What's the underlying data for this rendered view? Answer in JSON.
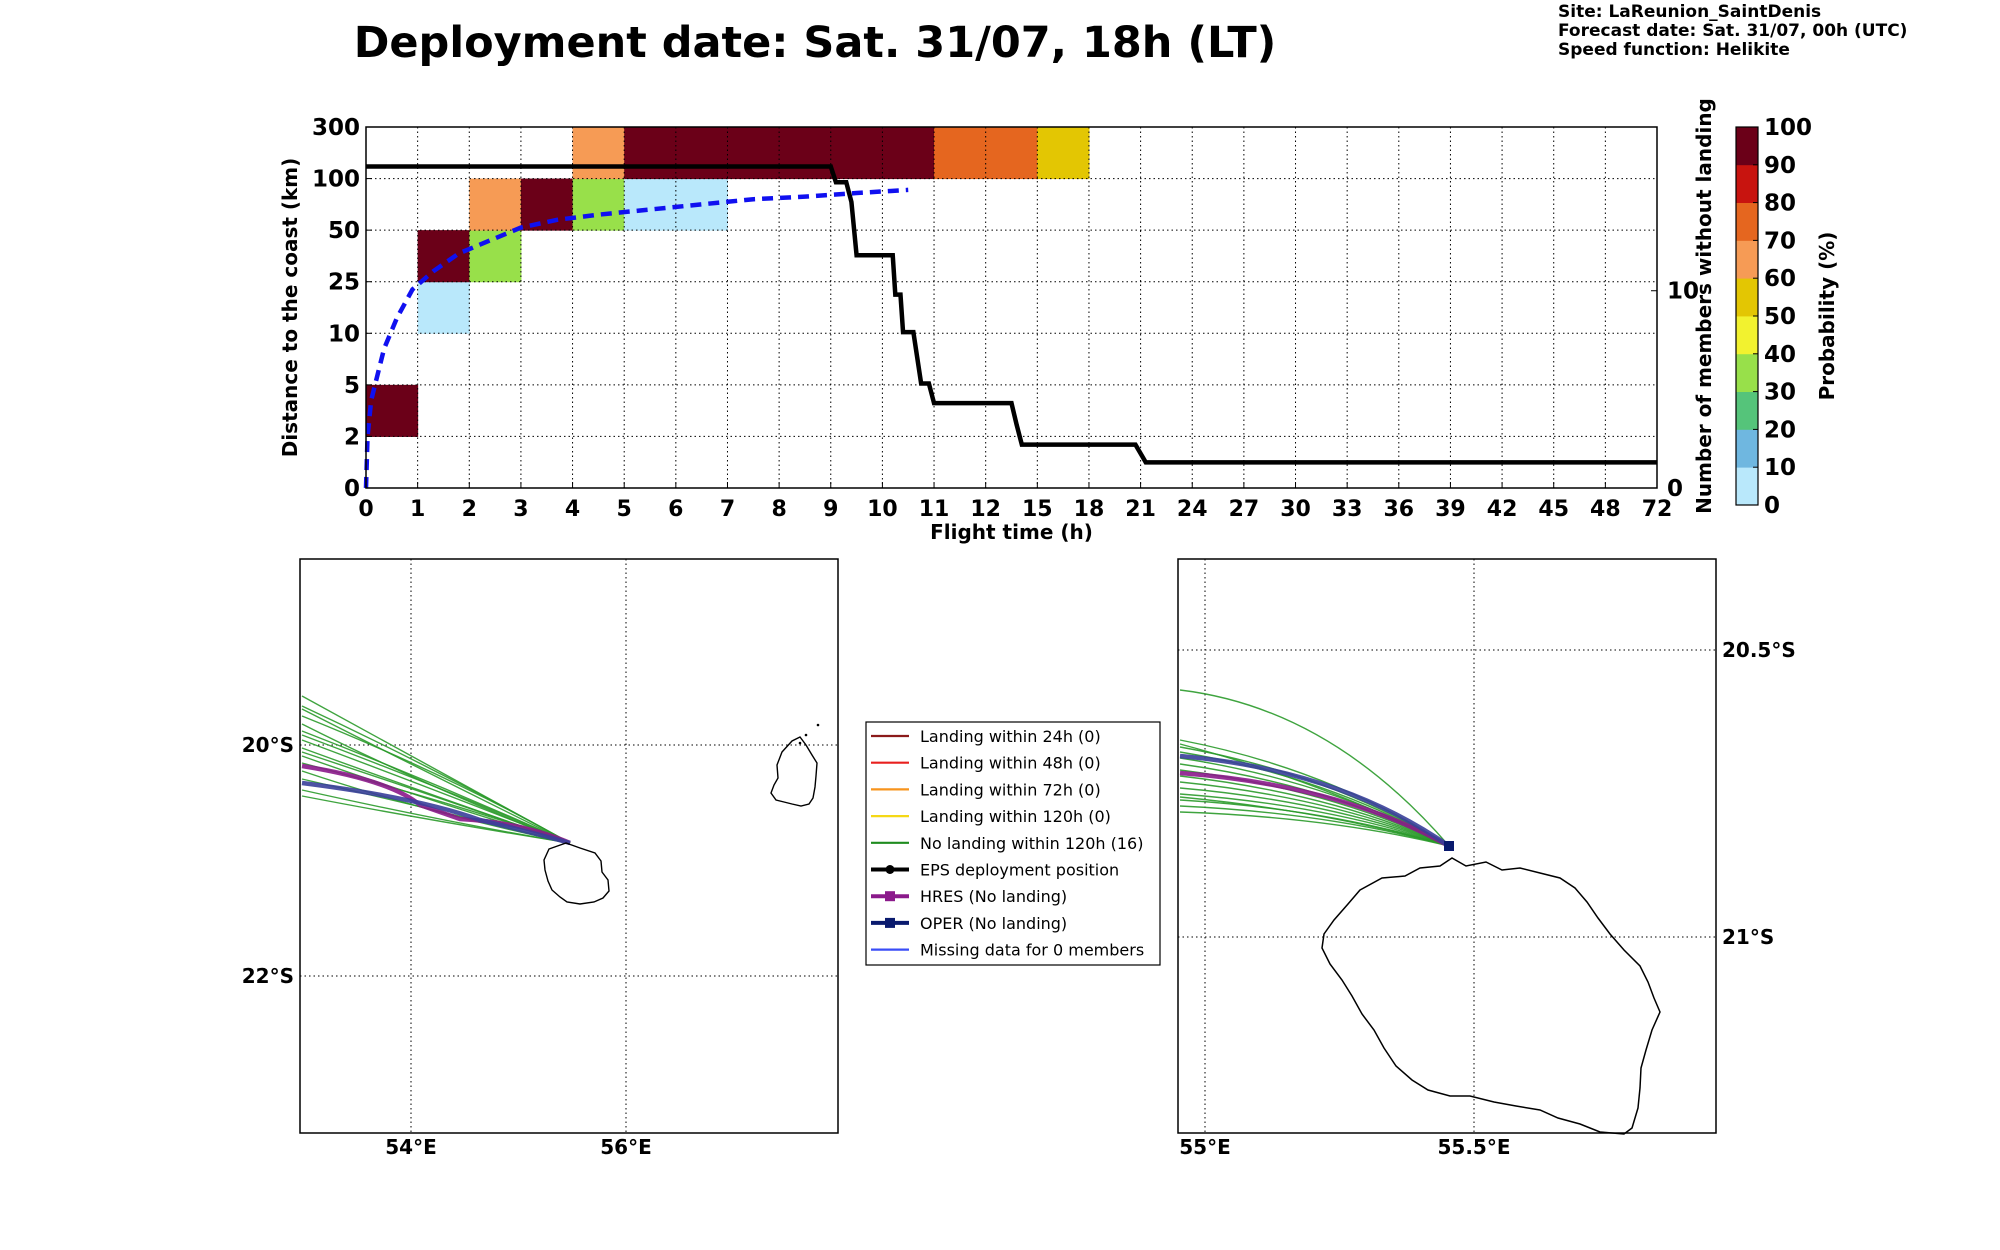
{
  "header": {
    "title": "Deployment date: Sat. 31/07, 18h (LT)",
    "site": "Site: LaReunion_SaintDenis",
    "forecast": "Forecast date: Sat. 31/07, 00h (UTC)",
    "speed": "Speed function: Helikite"
  },
  "chart_data": [
    {
      "type": "heatmap",
      "xlabel": "Flight time (h)",
      "ylabel": "Distance to the coast (km)",
      "y2label": "Number of members without landing",
      "colorbar_label": "Probability (%)",
      "x_tick_labels": [
        "0",
        "1",
        "2",
        "3",
        "4",
        "5",
        "6",
        "7",
        "8",
        "9",
        "10",
        "11",
        "12",
        "15",
        "18",
        "21",
        "24",
        "27",
        "30",
        "33",
        "36",
        "39",
        "42",
        "45",
        "48",
        "72"
      ],
      "y_tick_labels": [
        "0",
        "2",
        "5",
        "10",
        "25",
        "50",
        "100",
        "300"
      ],
      "y2_tick_labels": [
        "0",
        "10"
      ],
      "y2_range": [
        0,
        18.3
      ],
      "colorbar_ticks": [
        "0",
        "10",
        "20",
        "30",
        "40",
        "50",
        "60",
        "70",
        "80",
        "90",
        "100"
      ],
      "colorbar_colors": [
        "#b9e8fb",
        "#6fb7e0",
        "#55c47a",
        "#98e04a",
        "#f2f22f",
        "#e3c603",
        "#f69b55",
        "#e5661f",
        "#c8140f",
        "#6b0018"
      ],
      "cells": [
        {
          "x": 0,
          "y": 1,
          "p": 100
        },
        {
          "x": 1,
          "y": 3,
          "p": 5
        },
        {
          "x": 1,
          "y": 4,
          "p": 100
        },
        {
          "x": 2,
          "y": 4,
          "p": 35
        },
        {
          "x": 2,
          "y": 5,
          "p": 65
        },
        {
          "x": 3,
          "y": 5,
          "p": 100
        },
        {
          "x": 4,
          "y": 5,
          "p": 35
        },
        {
          "x": 4,
          "y": 6,
          "p": 65
        },
        {
          "x": 5,
          "y": 5,
          "p": 5
        },
        {
          "x": 6,
          "y": 5,
          "p": 5
        },
        {
          "x": 5,
          "y": 6,
          "p": 100
        },
        {
          "x": 6,
          "y": 6,
          "p": 100
        },
        {
          "x": 7,
          "y": 6,
          "p": 100
        },
        {
          "x": 8,
          "y": 6,
          "p": 100
        },
        {
          "x": 9,
          "y": 6,
          "p": 100
        },
        {
          "x": 10,
          "y": 6,
          "p": 100
        },
        {
          "x": 11,
          "y": 6,
          "p": 75
        },
        {
          "x": 12,
          "y": 6,
          "p": 75
        },
        {
          "x": 13,
          "y": 6,
          "p": 55
        }
      ],
      "members_without_landing": [
        [
          0,
          16.3
        ],
        [
          9,
          16.3
        ],
        [
          9.1,
          15.5
        ],
        [
          9.3,
          15.5
        ],
        [
          9.4,
          14.5
        ],
        [
          9.5,
          11.8
        ],
        [
          10.2,
          11.8
        ],
        [
          10.25,
          9.8
        ],
        [
          10.35,
          9.8
        ],
        [
          10.4,
          7.9
        ],
        [
          10.6,
          7.9
        ],
        [
          10.75,
          5.3
        ],
        [
          10.9,
          5.3
        ],
        [
          11.0,
          4.3
        ],
        [
          12.5,
          4.3
        ],
        [
          12.6,
          3.2
        ],
        [
          12.7,
          2.2
        ],
        [
          14.9,
          2.2
        ],
        [
          15.1,
          1.3
        ],
        [
          25,
          1.3
        ]
      ],
      "mean_distance_curve": [
        [
          0,
          0.0
        ],
        [
          0.03,
          1.0
        ],
        [
          0.1,
          1.7
        ],
        [
          0.2,
          2.1
        ],
        [
          0.35,
          2.7
        ],
        [
          0.6,
          3.3
        ],
        [
          0.9,
          3.85
        ],
        [
          1.3,
          4.2
        ],
        [
          1.8,
          4.55
        ],
        [
          2.4,
          4.8
        ],
        [
          3.0,
          5.05
        ],
        [
          3.7,
          5.2
        ],
        [
          4.5,
          5.3
        ],
        [
          5.5,
          5.4
        ],
        [
          6.5,
          5.5
        ],
        [
          7.5,
          5.6
        ],
        [
          8.5,
          5.65
        ],
        [
          9.5,
          5.72
        ],
        [
          10.5,
          5.78
        ]
      ]
    },
    {
      "type": "map",
      "lat_labels": [
        "20°S",
        "22°S"
      ],
      "lon_labels": [
        "54°E",
        "56°E"
      ],
      "legend": [
        {
          "label": "Landing within 24h (0)",
          "color": "#8b1a1a",
          "marker": "none"
        },
        {
          "label": "Landing within 48h (0)",
          "color": "#e8201f",
          "marker": "none"
        },
        {
          "label": "Landing within 72h (0)",
          "color": "#f7941d",
          "marker": "none"
        },
        {
          "label": "Landing within 120h (0)",
          "color": "#f5d816",
          "marker": "none"
        },
        {
          "label": "No landing within 120h (16)",
          "color": "#1f8c1f",
          "marker": "none"
        },
        {
          "label": "EPS deployment position",
          "color": "#000000",
          "marker": "circle"
        },
        {
          "label": "HRES (No landing)",
          "color": "#8b1a8b",
          "marker": "square"
        },
        {
          "label": "OPER (No landing)",
          "color": "#0a1a6e",
          "marker": "square"
        },
        {
          "label": "Missing data for 0 members",
          "color": "#3a4df7",
          "marker": "none"
        }
      ]
    },
    {
      "type": "map",
      "lat_labels": [
        "20.5°S",
        "21°S"
      ],
      "lon_labels": [
        "55°E",
        "55.5°E"
      ]
    }
  ]
}
